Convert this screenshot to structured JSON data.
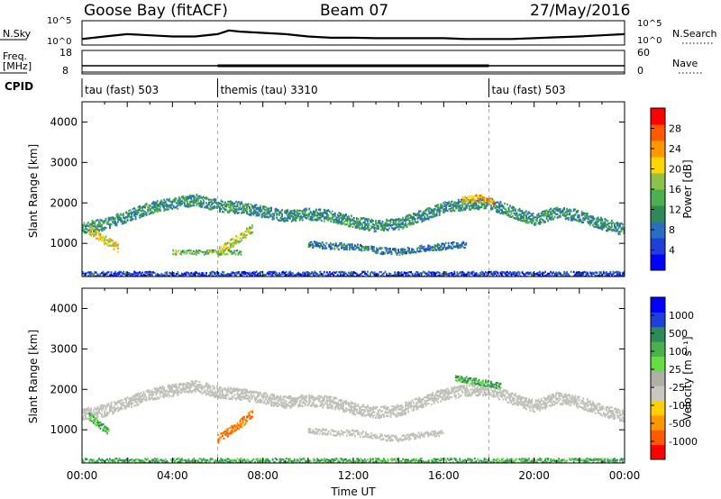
{
  "header": {
    "station": "Goose Bay (fitACF)",
    "beam": "Beam 07",
    "date": "27/May/2016"
  },
  "colors": {
    "power_scale": [
      "#0000ff",
      "#1e3fd8",
      "#2a6ec0",
      "#2e8b57",
      "#4caf50",
      "#8bc34a",
      "#ffd700",
      "#ff9800",
      "#ff5a00",
      "#ff0000"
    ],
    "velocity_scale": [
      "#0000ff",
      "#1e3fd8",
      "#2e8b57",
      "#4caf50",
      "#66dd44",
      "#b0b0a8",
      "#c8c8c0",
      "#ffd000",
      "#ff9800",
      "#ff5a00",
      "#ff0000"
    ],
    "ground_scatter": "#c0c0b8",
    "mode_divider": "#999999"
  },
  "chart_data": [
    {
      "type": "line",
      "title": "",
      "left_label": "N.Sky",
      "right_label": "N.Search",
      "left_ticks": [
        "10^5",
        "10^0"
      ],
      "right_ticks": [
        "10^5",
        "10^0"
      ],
      "x": [
        0,
        1,
        2,
        3,
        4,
        5,
        6,
        6.5,
        7,
        8,
        9,
        10,
        11,
        12,
        13,
        14,
        15,
        16,
        17,
        18,
        19,
        20,
        21,
        22,
        23,
        24
      ],
      "y": [
        0.25,
        0.35,
        0.45,
        0.4,
        0.35,
        0.35,
        0.45,
        0.6,
        0.55,
        0.5,
        0.45,
        0.35,
        0.3,
        0.3,
        0.28,
        0.28,
        0.28,
        0.28,
        0.25,
        0.25,
        0.25,
        0.28,
        0.32,
        0.35,
        0.4,
        0.45
      ]
    },
    {
      "type": "line",
      "title": "",
      "left_label": "Freq.",
      "left_unit": "[MHz]",
      "right_label": "Nave",
      "left_ticks": [
        "18",
        "8"
      ],
      "right_ticks": [
        "60",
        "0"
      ],
      "segments": [
        {
          "x_start": 0,
          "x_end": 6,
          "thick": false
        },
        {
          "x_start": 6,
          "x_end": 18,
          "thick": true
        },
        {
          "x_start": 18,
          "x_end": 24,
          "thick": false
        }
      ]
    },
    {
      "type": "table",
      "label": "CPID",
      "modes": [
        {
          "start": 0,
          "end": 6,
          "name": "tau (fast) 503"
        },
        {
          "start": 6,
          "end": 18,
          "name": "themis (tau) 3310"
        },
        {
          "start": 18,
          "end": 24,
          "name": "tau (fast) 503"
        }
      ]
    },
    {
      "type": "heatmap",
      "title": "",
      "ylabel": "Slant Range [km]",
      "yticks": [
        "1000",
        "2000",
        "3000",
        "4000"
      ],
      "ylim": [
        180,
        4500
      ],
      "xlim": [
        0,
        24
      ],
      "colorbar": {
        "label": "Power [dB]",
        "ticks": [
          "4",
          "8",
          "12",
          "16",
          "20",
          "24",
          "28"
        ],
        "range": [
          0,
          30
        ]
      },
      "echo_bands": [
        {
          "x": [
            0,
            1,
            2,
            3,
            4,
            5,
            6,
            7,
            8,
            9,
            10,
            11,
            12,
            13,
            14,
            15,
            16,
            17,
            18,
            19,
            20,
            21,
            22,
            23,
            24
          ],
          "y": [
            1400,
            1500,
            1700,
            1900,
            2000,
            2100,
            1950,
            1900,
            1800,
            1700,
            1750,
            1700,
            1550,
            1450,
            1500,
            1700,
            1900,
            2000,
            2000,
            1800,
            1600,
            1800,
            1700,
            1500,
            1350
          ],
          "width": 160,
          "level": 10
        },
        {
          "x": [
            0.3,
            1,
            1.6
          ],
          "y": [
            1350,
            1100,
            900
          ],
          "width": 120,
          "level": 20
        },
        {
          "x": [
            6,
            6.8,
            7.5
          ],
          "y": [
            800,
            1100,
            1400
          ],
          "width": 120,
          "level": 18
        },
        {
          "x": [
            4,
            5,
            6,
            7
          ],
          "y": [
            800,
            800,
            800,
            800
          ],
          "width": 60,
          "level": 14
        },
        {
          "x": [
            10,
            11,
            12,
            13,
            14,
            15,
            16,
            17
          ],
          "y": [
            1000,
            950,
            950,
            850,
            800,
            900,
            950,
            1000
          ],
          "width": 90,
          "level": 8
        },
        {
          "x": [
            16.8,
            17.5,
            18.2
          ],
          "y": [
            2100,
            2150,
            2000
          ],
          "width": 90,
          "level": 22
        },
        {
          "x": [
            0,
            24
          ],
          "y": [
            260,
            260
          ],
          "width": 70,
          "level": 4
        }
      ]
    },
    {
      "type": "heatmap",
      "title": "",
      "ylabel": "Slant Range [km]",
      "yticks": [
        "1000",
        "2000",
        "3000",
        "4000"
      ],
      "ylim": [
        180,
        4500
      ],
      "xlim": [
        0,
        24
      ],
      "xticks": [
        "00:00",
        "04:00",
        "08:00",
        "12:00",
        "16:00",
        "20:00",
        "00:00"
      ],
      "xlabel": "Time UT",
      "colorbar": {
        "label": "Velocity [m s⁻¹]",
        "ticks": [
          "1000",
          "500",
          "100",
          "25",
          "-25",
          "-100",
          "-500",
          "-1000"
        ]
      },
      "echo_bands": [
        {
          "x": [
            0,
            1,
            2,
            3,
            4,
            5,
            6,
            7,
            8,
            9,
            10,
            11,
            12,
            13,
            14,
            15,
            16,
            17,
            18,
            19,
            20,
            21,
            22,
            23,
            24
          ],
          "y": [
            1400,
            1500,
            1700,
            1900,
            2000,
            2100,
            1950,
            1900,
            1800,
            1700,
            1750,
            1700,
            1550,
            1450,
            1500,
            1700,
            1900,
            2000,
            2000,
            1800,
            1600,
            1800,
            1700,
            1500,
            1350
          ],
          "width": 160,
          "kind": "ground"
        },
        {
          "x": [
            6,
            6.8,
            7.5
          ],
          "y": [
            800,
            1100,
            1400
          ],
          "width": 120,
          "kind": "negative"
        },
        {
          "x": [
            0.3,
            1.2
          ],
          "y": [
            1350,
            950
          ],
          "width": 100,
          "kind": "positive"
        },
        {
          "x": [
            16.5,
            18.5
          ],
          "y": [
            2300,
            2100
          ],
          "width": 90,
          "kind": "positive"
        },
        {
          "x": [
            10,
            11,
            12,
            13,
            14,
            15,
            16
          ],
          "y": [
            1000,
            950,
            950,
            850,
            800,
            900,
            950
          ],
          "width": 80,
          "kind": "ground"
        },
        {
          "x": [
            0,
            24
          ],
          "y": [
            260,
            260
          ],
          "width": 60,
          "kind": "positive"
        }
      ]
    }
  ]
}
